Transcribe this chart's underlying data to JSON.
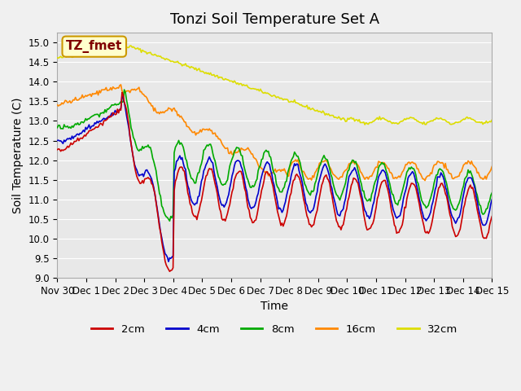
{
  "title": "Tonzi Soil Temperature Set A",
  "ylabel": "Soil Temperature (C)",
  "xlabel": "Time",
  "annotation": "TZ_fmet",
  "ylim": [
    9.0,
    15.25
  ],
  "yticks": [
    9.0,
    9.5,
    10.0,
    10.5,
    11.0,
    11.5,
    12.0,
    12.5,
    13.0,
    13.5,
    14.0,
    14.5,
    15.0
  ],
  "xtick_labels": [
    "Nov 30",
    "Dec 1",
    "Dec 2",
    "Dec 3",
    "Dec 4",
    "Dec 5",
    "Dec 6",
    "Dec 7",
    "Dec 8",
    "Dec 9",
    "Dec 10",
    "Dec 11",
    "Dec 12",
    "Dec 13",
    "Dec 14",
    "Dec 15"
  ],
  "colors": {
    "2cm": "#cc0000",
    "4cm": "#0000cc",
    "8cm": "#00aa00",
    "16cm": "#ff8800",
    "32cm": "#dddd00"
  },
  "legend_labels": [
    "2cm",
    "4cm",
    "8cm",
    "16cm",
    "32cm"
  ],
  "fig_bg": "#f0f0f0",
  "plot_bg": "#e8e8e8",
  "annotation_bg": "#ffffcc",
  "annotation_border": "#cc9900",
  "annotation_text_color": "#800000",
  "title_fontsize": 13,
  "axis_fontsize": 10,
  "tick_fontsize": 8.5
}
